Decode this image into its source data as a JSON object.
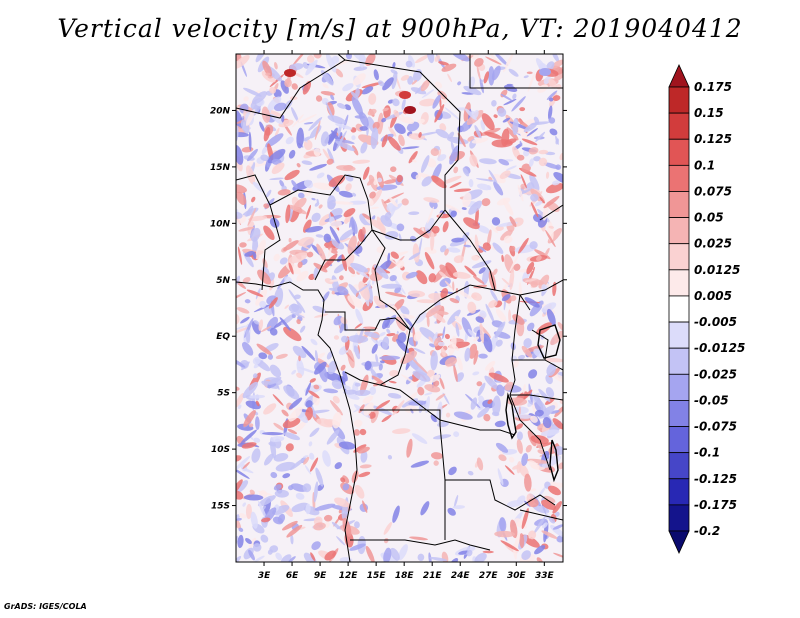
{
  "title": "Vertical velocity [m/s] at 900hPa, VT: 2019040412",
  "credit": "GrADS: IGES/COLA",
  "map": {
    "region": "Central Africa",
    "lon_range": [
      0,
      35
    ],
    "lat_range": [
      -20,
      25
    ],
    "lat_ticks": [
      "20N",
      "15N",
      "10N",
      "5N",
      "EQ",
      "5S",
      "10S",
      "15S"
    ],
    "lon_ticks": [
      "3E",
      "6E",
      "9E",
      "12E",
      "15E",
      "18E",
      "21E",
      "24E",
      "27E",
      "30E",
      "33E"
    ]
  },
  "colorbar": {
    "labels": [
      "0.175",
      "0.15",
      "0.125",
      "0.1",
      "0.075",
      "0.05",
      "0.025",
      "0.0125",
      "0.005",
      "-0.005",
      "-0.0125",
      "-0.025",
      "-0.05",
      "-0.075",
      "-0.1",
      "-0.125",
      "-0.175",
      "-0.2"
    ],
    "colors": [
      "#a0141e",
      "#be2828",
      "#d23c3c",
      "#e15555",
      "#eb7373",
      "#f09696",
      "#f5b4b4",
      "#fad2d2",
      "#fdeaea",
      "#ffffff",
      "#dcdcfa",
      "#c3c3f5",
      "#a5a5f0",
      "#8282e6",
      "#6464dc",
      "#4646c8",
      "#2828b4",
      "#14148c",
      "#0a0a6e"
    ]
  }
}
